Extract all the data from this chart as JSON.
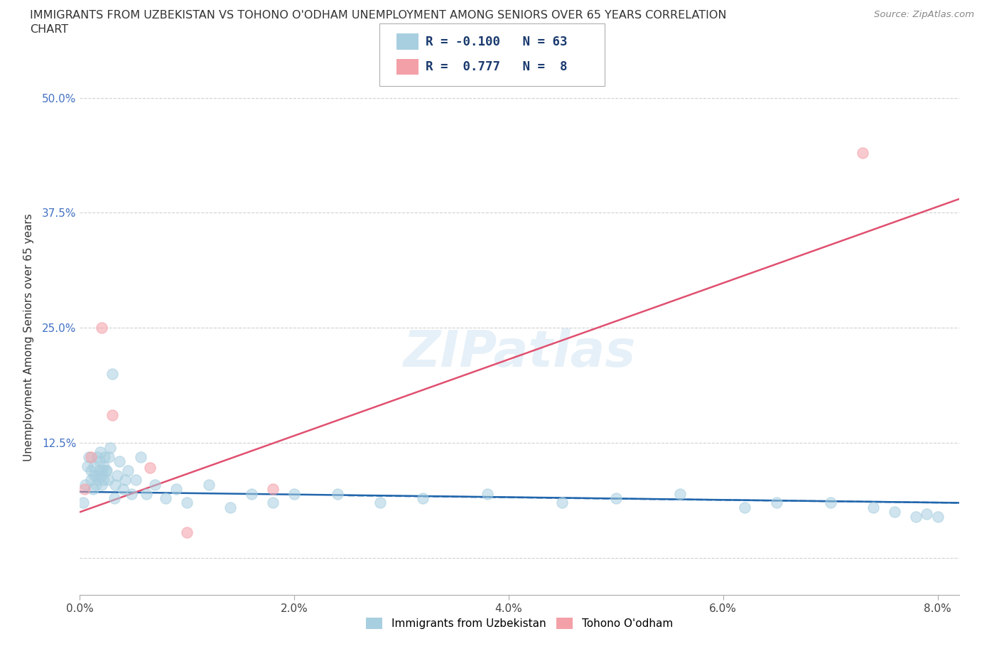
{
  "title_line1": "IMMIGRANTS FROM UZBEKISTAN VS TOHONO O'ODHAM UNEMPLOYMENT AMONG SENIORS OVER 65 YEARS CORRELATION",
  "title_line2": "CHART",
  "source": "Source: ZipAtlas.com",
  "ylabel": "Unemployment Among Seniors over 65 years",
  "watermark": "ZIPatlas",
  "legend1_R": "-0.100",
  "legend1_N": "63",
  "legend2_R": "0.777",
  "legend2_N": "8",
  "uzbekistan_color": "#a8cfe0",
  "uzbekistan_line_color": "#2166ac",
  "tohono_color": "#f4a0a8",
  "tohono_line_color": "#e05070",
  "uzbekistan_x": [
    0.0003,
    0.0005,
    0.0007,
    0.0008,
    0.001,
    0.001,
    0.0012,
    0.0013,
    0.0013,
    0.0015,
    0.0015,
    0.0016,
    0.0017,
    0.0018,
    0.0018,
    0.0019,
    0.002,
    0.002,
    0.0021,
    0.0022,
    0.0022,
    0.0023,
    0.0024,
    0.0025,
    0.0026,
    0.0027,
    0.0028,
    0.003,
    0.0032,
    0.0033,
    0.0035,
    0.0037,
    0.004,
    0.0042,
    0.0045,
    0.0048,
    0.0052,
    0.0057,
    0.0062,
    0.007,
    0.008,
    0.009,
    0.01,
    0.012,
    0.014,
    0.016,
    0.018,
    0.02,
    0.024,
    0.028,
    0.032,
    0.038,
    0.045,
    0.05,
    0.056,
    0.062,
    0.065,
    0.07,
    0.074,
    0.076,
    0.078,
    0.079,
    0.08
  ],
  "uzbekistan_y": [
    0.06,
    0.08,
    0.1,
    0.11,
    0.085,
    0.095,
    0.075,
    0.09,
    0.1,
    0.08,
    0.09,
    0.11,
    0.085,
    0.095,
    0.105,
    0.115,
    0.09,
    0.08,
    0.095,
    0.085,
    0.1,
    0.11,
    0.095,
    0.095,
    0.085,
    0.11,
    0.12,
    0.2,
    0.065,
    0.08,
    0.09,
    0.105,
    0.075,
    0.085,
    0.095,
    0.07,
    0.085,
    0.11,
    0.07,
    0.08,
    0.065,
    0.075,
    0.06,
    0.08,
    0.055,
    0.07,
    0.06,
    0.07,
    0.07,
    0.06,
    0.065,
    0.07,
    0.06,
    0.065,
    0.07,
    0.055,
    0.06,
    0.06,
    0.055,
    0.05,
    0.045,
    0.048,
    0.045
  ],
  "tohono_x": [
    0.0004,
    0.001,
    0.002,
    0.003,
    0.0065,
    0.01,
    0.018,
    0.073
  ],
  "tohono_y": [
    0.075,
    0.11,
    0.25,
    0.155,
    0.098,
    0.028,
    0.075,
    0.44
  ],
  "xmin": 0.0,
  "xmax": 0.082,
  "ymin": -0.04,
  "ymax": 0.52,
  "x_ticks": [
    0.0,
    0.02,
    0.04,
    0.06,
    0.08
  ],
  "x_tick_labels": [
    "0.0%",
    "2.0%",
    "4.0%",
    "6.0%",
    "8.0%"
  ],
  "y_tick_vals": [
    0.0,
    0.125,
    0.25,
    0.375,
    0.5
  ],
  "y_tick_labels": [
    "",
    "12.5%",
    "25.0%",
    "37.5%",
    "50.0%"
  ],
  "background_color": "#ffffff",
  "grid_color": "#cccccc",
  "uzb_trendline_x0": 0.0,
  "uzb_trendline_y0": 0.072,
  "uzb_trendline_x1": 0.082,
  "uzb_trendline_y1": 0.06,
  "toh_trendline_x0": 0.0,
  "toh_trendline_y0": 0.05,
  "toh_trendline_x1": 0.082,
  "toh_trendline_y1": 0.39
}
